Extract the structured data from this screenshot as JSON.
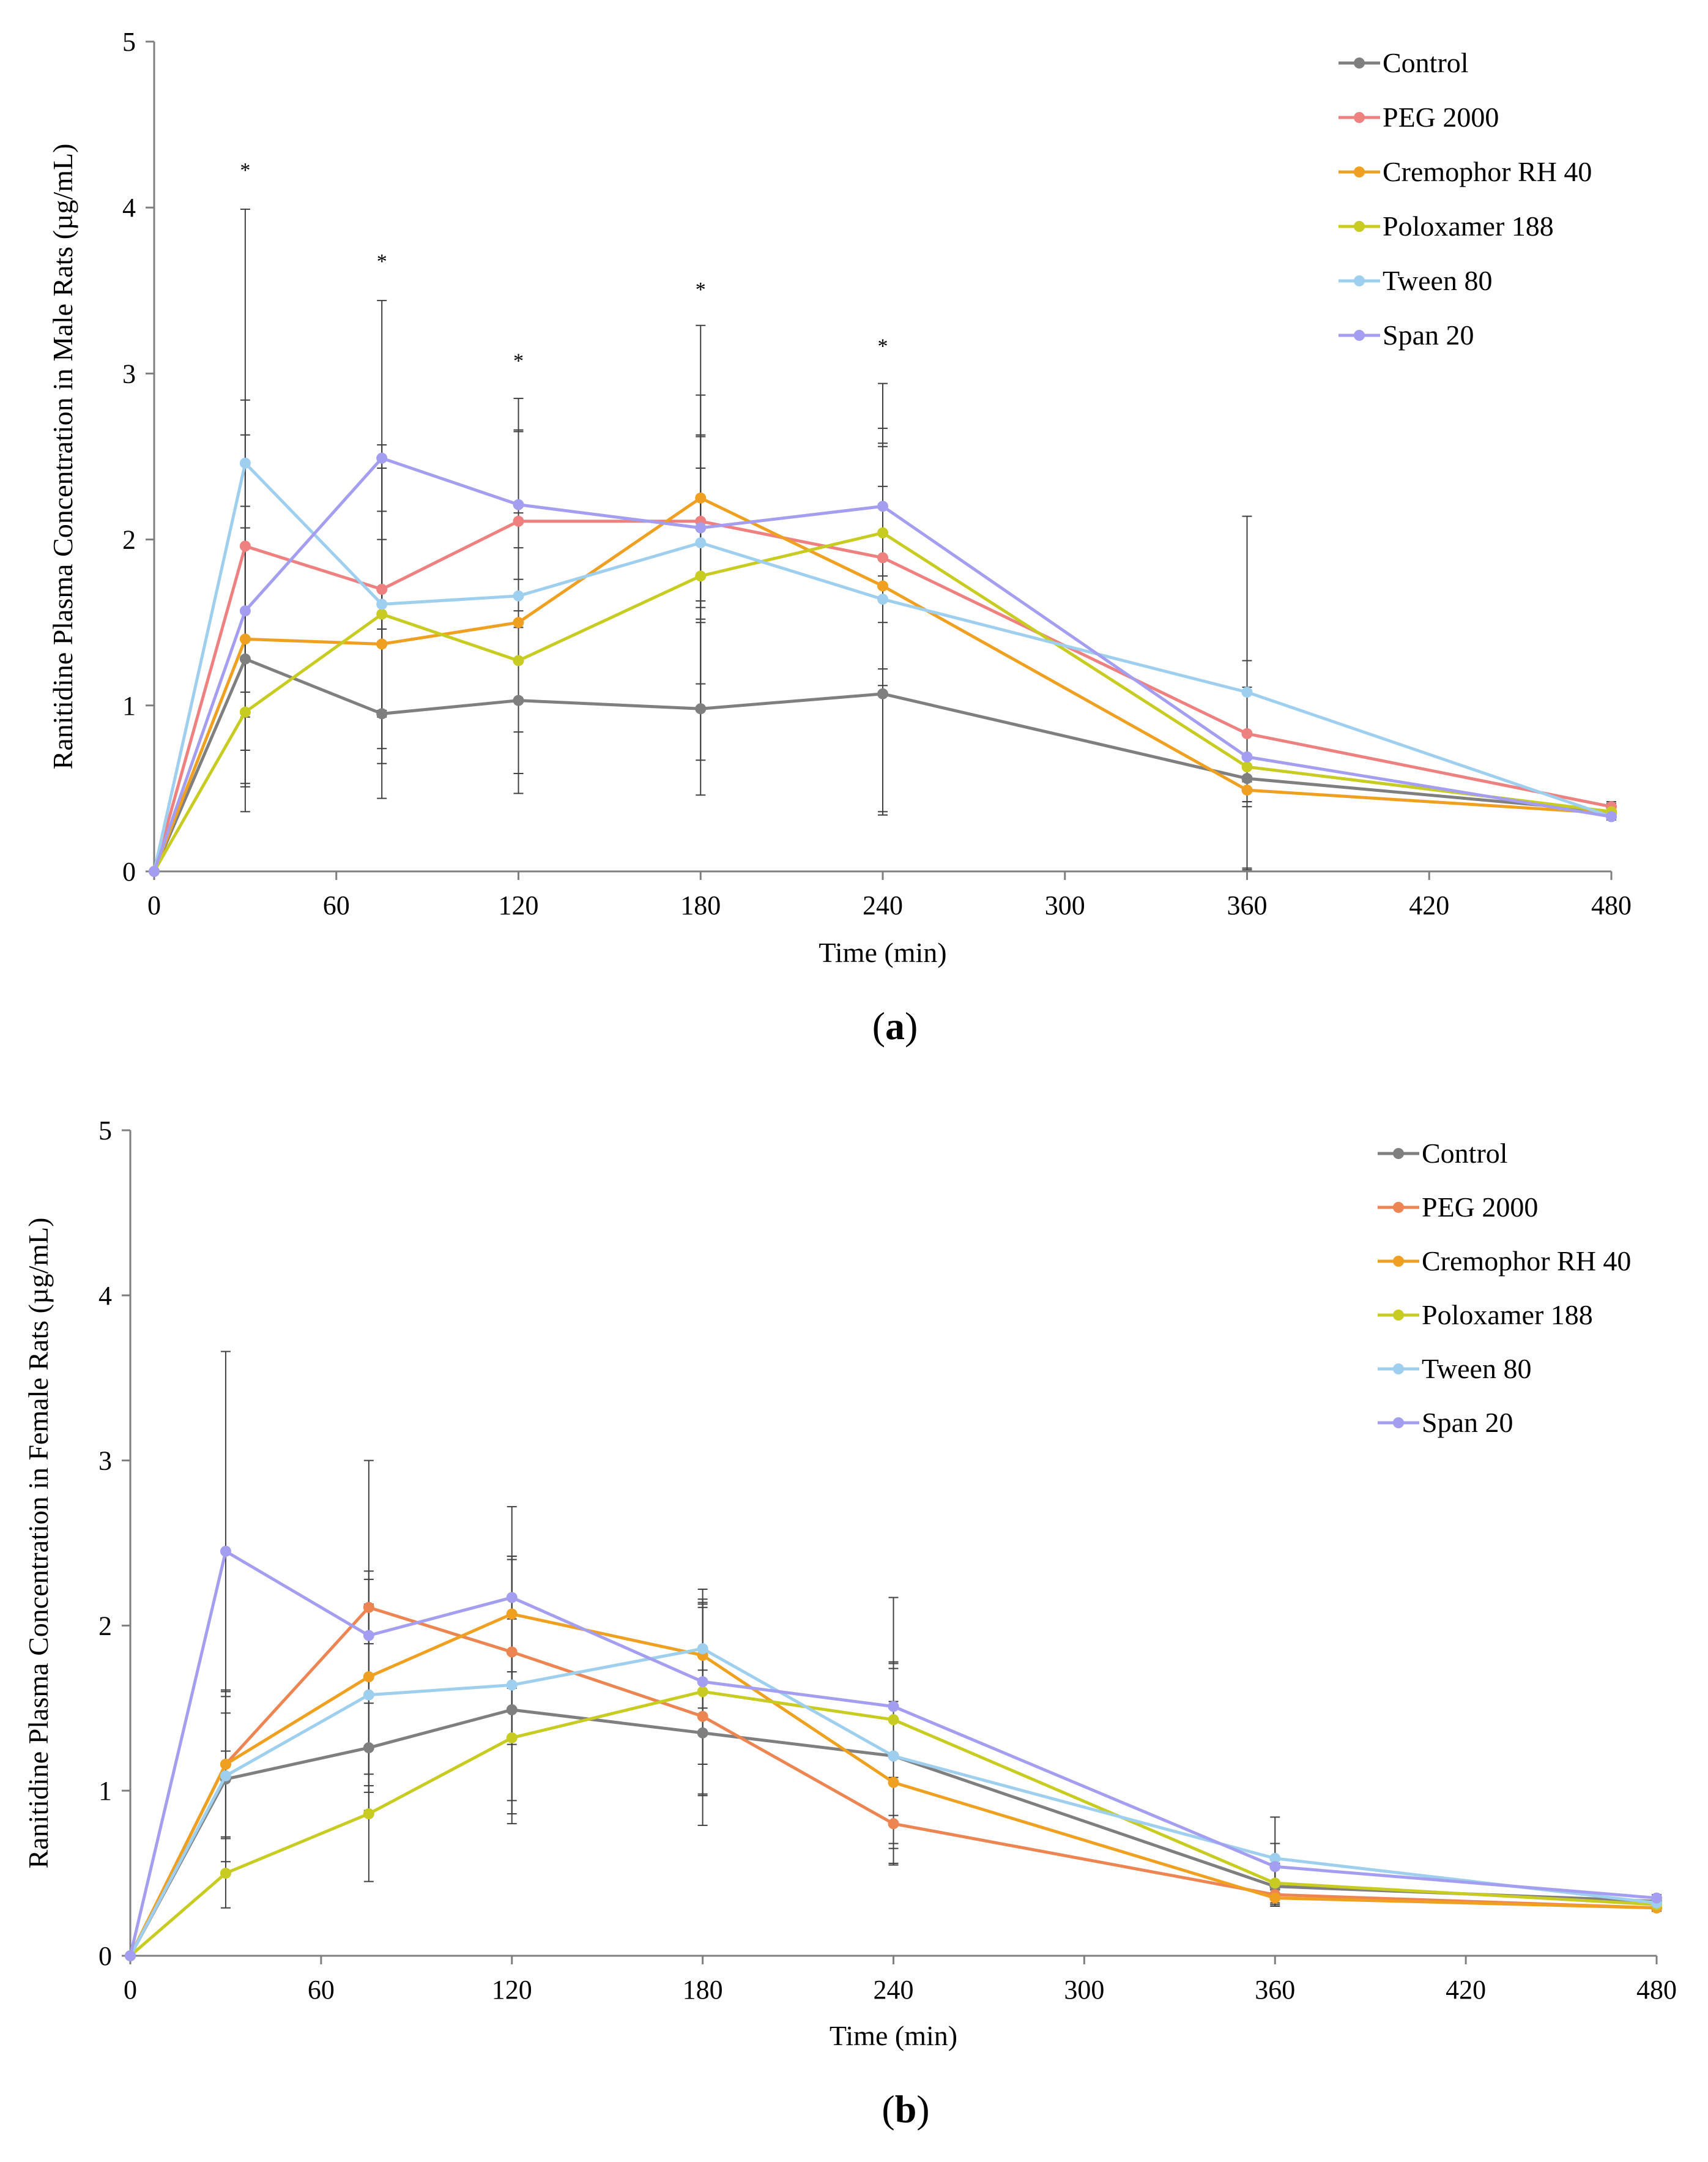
{
  "colors": {
    "Control": "#7f7f7f",
    "PEG 2000 (a)": "#ef8080",
    "PEG 2000 (b)": "#ec8552",
    "Cremophor RH 40": "#f0a020",
    "Poloxamer 188": "#c8cc22",
    "Tween 80": "#9ecfef",
    "Span 20": "#a49ef0",
    "axis": "#7f7f7f",
    "error": "#404040"
  },
  "chart_data": [
    {
      "type": "line",
      "panel_label": "a",
      "title": "",
      "xlabel": "Time (min)",
      "ylabel": "Ranitidine Plasma Concentration in Male Rats (µg/mL)",
      "xlim": [
        0,
        480
      ],
      "ylim": [
        0,
        5
      ],
      "xticks": [
        "0",
        "60",
        "120",
        "180",
        "240",
        "300",
        "360",
        "420",
        "480"
      ],
      "yticks": [
        "0",
        "1",
        "2",
        "3",
        "4",
        "5"
      ],
      "x": [
        0,
        30,
        75,
        120,
        180,
        240,
        360,
        480
      ],
      "significance_marks": [
        {
          "x": 30,
          "y": 4.23,
          "label": "*"
        },
        {
          "x": 75,
          "y": 3.68,
          "label": "*"
        },
        {
          "x": 120,
          "y": 3.08,
          "label": "*"
        },
        {
          "x": 180,
          "y": 3.51,
          "label": "*"
        },
        {
          "x": 240,
          "y": 3.17,
          "label": "*"
        }
      ],
      "series": [
        {
          "name": "Control",
          "color_key": "Control",
          "values": [
            0,
            1.28,
            0.95,
            1.03,
            0.98,
            1.07,
            0.56,
            0.36
          ],
          "errors": [
            0,
            0.92,
            0.51,
            0.44,
            0.52,
            0.71,
            0.55,
            0.05
          ]
        },
        {
          "name": "PEG 2000",
          "color_key": "PEG 2000 (a)",
          "values": [
            0,
            1.96,
            1.7,
            2.11,
            2.11,
            1.89,
            0.83,
            0.39
          ],
          "errors": [
            0,
            0.88,
            0.73,
            0.54,
            0.52,
            0.67,
            0.44,
            0.03
          ]
        },
        {
          "name": "Cremophor RH 40",
          "color_key": "Cremophor RH 40",
          "values": [
            0,
            1.4,
            1.37,
            1.5,
            2.25,
            1.72,
            0.49,
            0.35
          ],
          "errors": [
            0,
            0.67,
            0.63,
            0.66,
            0.62,
            0.6,
            0.07,
            0.03
          ]
        },
        {
          "name": "Poloxamer 188",
          "color_key": "Poloxamer 188",
          "values": [
            0,
            0.96,
            1.55,
            1.27,
            1.78,
            2.04,
            0.63,
            0.36
          ],
          "errors": [
            0,
            0.43,
            0.62,
            0.68,
            0.65,
            0.54,
            0.21,
            0.03
          ]
        },
        {
          "name": "Tween 80",
          "color_key": "Tween 80",
          "values": [
            0,
            2.46,
            1.61,
            1.66,
            1.98,
            1.64,
            1.08,
            0.33
          ],
          "errors": [
            0,
            1.53,
            0.96,
            1.19,
            1.31,
            1.3,
            1.06,
            0.02
          ]
        },
        {
          "name": "Span 20",
          "color_key": "Span 20",
          "values": [
            0,
            1.57,
            2.49,
            2.21,
            2.07,
            2.2,
            0.69,
            0.33
          ],
          "errors": [
            0,
            1.06,
            0.95,
            0.45,
            0.55,
            0.47,
            0.15,
            0.02
          ]
        }
      ]
    },
    {
      "type": "line",
      "panel_label": "b",
      "title": "",
      "xlabel": "Time (min)",
      "ylabel": "Ranitidine Plasma Concentration in Female Rats (µg/mL)",
      "xlim": [
        0,
        480
      ],
      "ylim": [
        0,
        5
      ],
      "xticks": [
        "0",
        "60",
        "120",
        "180",
        "240",
        "300",
        "360",
        "420",
        "480"
      ],
      "yticks": [
        "0",
        "1",
        "2",
        "3",
        "4",
        "5"
      ],
      "x": [
        0,
        30,
        75,
        120,
        180,
        240,
        360,
        480
      ],
      "significance_marks": [],
      "series": [
        {
          "name": "Control",
          "color_key": "Control",
          "values": [
            0,
            1.07,
            1.26,
            1.49,
            1.35,
            1.21,
            0.42,
            0.33
          ],
          "errors": [
            0,
            0.5,
            0.27,
            0.55,
            0.38,
            0.53,
            0.11,
            0.02
          ]
        },
        {
          "name": "PEG 2000",
          "color_key": "PEG 2000 (b)",
          "values": [
            0,
            1.16,
            2.11,
            1.84,
            1.45,
            0.8,
            0.37,
            0.29
          ],
          "errors": [
            0,
            0.45,
            0.22,
            0.56,
            0.66,
            0.25,
            0.03,
            0.02
          ]
        },
        {
          "name": "Cremophor RH 40",
          "color_key": "Cremophor RH 40",
          "values": [
            0,
            1.16,
            1.69,
            2.07,
            1.82,
            1.05,
            0.35,
            0.29
          ],
          "errors": [
            0,
            0.44,
            0.59,
            0.35,
            0.32,
            0.49,
            0.05,
            0.02
          ]
        },
        {
          "name": "Poloxamer 188",
          "color_key": "Poloxamer 188",
          "values": [
            0,
            0.5,
            0.86,
            1.32,
            1.6,
            1.43,
            0.44,
            0.31
          ],
          "errors": [
            0,
            0.21,
            0.41,
            0.52,
            0.62,
            0.35,
            0.12,
            0.02
          ]
        },
        {
          "name": "Tween 80",
          "color_key": "Tween 80",
          "values": [
            0,
            1.09,
            1.58,
            1.64,
            1.86,
            1.21,
            0.59,
            0.32
          ],
          "errors": [
            0,
            0.38,
            0.55,
            0.78,
            0.27,
            0.56,
            0.25,
            0.02
          ]
        },
        {
          "name": "Span 20",
          "color_key": "Span 20",
          "values": [
            0,
            2.45,
            1.94,
            2.17,
            1.66,
            1.51,
            0.54,
            0.35
          ],
          "errors": [
            0,
            1.21,
            1.06,
            0.55,
            0.5,
            0.66,
            0.14,
            0.02
          ]
        }
      ]
    }
  ]
}
